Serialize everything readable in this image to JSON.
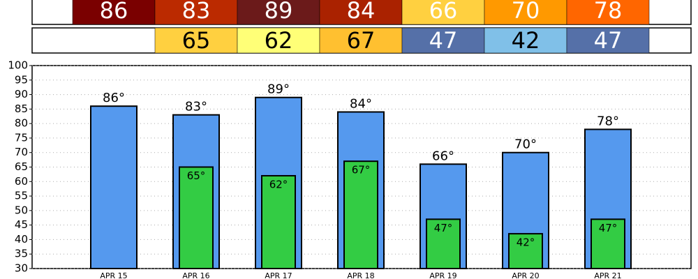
{
  "chart_data": {
    "type": "bar",
    "categories": [
      "APR 15",
      "APR 16",
      "APR 17",
      "APR 18",
      "APR 19",
      "APR 20",
      "APR 21"
    ],
    "series": [
      {
        "color": "#5599ee",
        "values": [
          86,
          83,
          89,
          84,
          66,
          70,
          78
        ],
        "value_labels": [
          "86°",
          "83°",
          "89°",
          "84°",
          "66°",
          "70°",
          "78°"
        ],
        "cell_colors": [
          "#7a0000",
          "#bb2a00",
          "#6b1a1a",
          "#aa2200",
          "#ffd040",
          "#ff9900",
          "#ff6600"
        ]
      },
      {
        "color": "#33cc44",
        "values": [
          null,
          65,
          62,
          67,
          47,
          42,
          47
        ],
        "value_labels": [
          null,
          "65°",
          "62°",
          "67°",
          "47°",
          "42°",
          "47°"
        ],
        "cell_colors": [
          null,
          "#ffd040",
          "#ffff77",
          "#ffc030",
          "#5570a8",
          "#80c0e8",
          "#5570a8"
        ]
      }
    ],
    "ylim": [
      30,
      100
    ],
    "yticks": [
      30,
      35,
      40,
      45,
      50,
      55,
      60,
      65,
      70,
      75,
      80,
      85,
      90,
      95,
      100
    ],
    "grid": true
  }
}
